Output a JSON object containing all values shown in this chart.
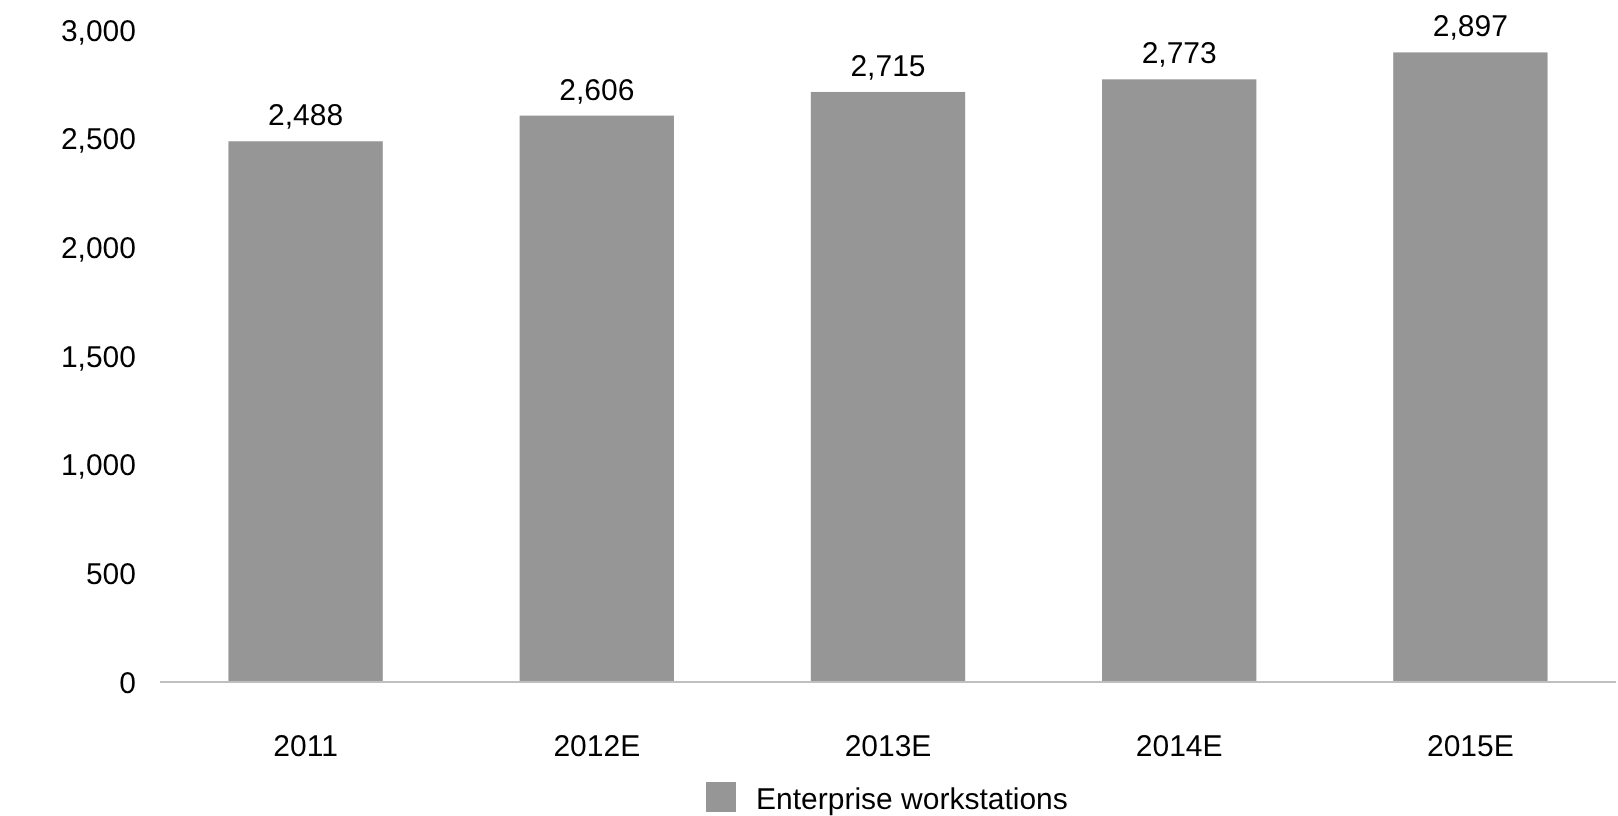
{
  "chart_data": {
    "type": "bar",
    "categories": [
      "2011",
      "2012E",
      "2013E",
      "2014E",
      "2015E"
    ],
    "series": [
      {
        "name": "Enterprise workstations",
        "color": "#969696",
        "values": [
          2488,
          2606,
          2715,
          2773,
          2897
        ]
      }
    ],
    "ylim": [
      0,
      3000
    ],
    "yticks": [
      {
        "value": 0,
        "label": "0"
      },
      {
        "value": 500,
        "label": "500"
      },
      {
        "value": 1000,
        "label": "1,000"
      },
      {
        "value": 1500,
        "label": "1,500"
      },
      {
        "value": 2000,
        "label": "2,000"
      },
      {
        "value": 2500,
        "label": "2,500"
      },
      {
        "value": 3000,
        "label": "3,000"
      }
    ],
    "value_labels": [
      "2,488",
      "2,606",
      "2,715",
      "2,773",
      "2,897"
    ],
    "grid": false,
    "legend": "bottom"
  }
}
